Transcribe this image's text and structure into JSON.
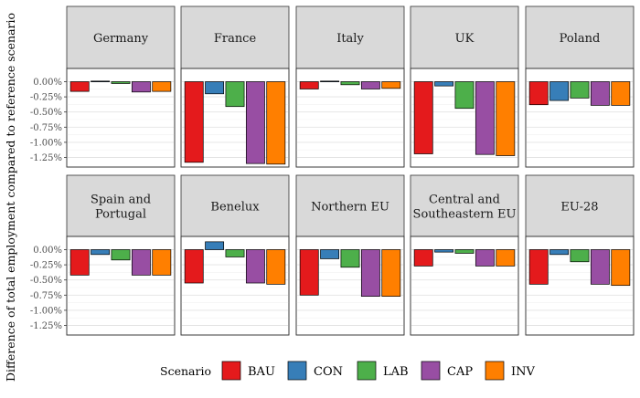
{
  "chart_data": {
    "type": "bar",
    "ylabel": "Difference of total employment compared to reference scenario",
    "yticks": [
      "0.00%",
      "-0.25%",
      "-0.50%",
      "-0.75%",
      "-1.00%",
      "-1.25%"
    ],
    "ytick_values": [
      0,
      -0.25,
      -0.5,
      -0.75,
      -1.0,
      -1.25
    ],
    "ylim": [
      -1.4,
      0.15
    ],
    "series_names": [
      "BAU",
      "CON",
      "LAB",
      "CAP",
      "INV"
    ],
    "colors": [
      "#e41a1c",
      "#377eb8",
      "#4daf4a",
      "#984ea3",
      "#ff7f00"
    ],
    "legend_title": "Scenario",
    "legend_position": "bottom",
    "grid": true,
    "facets": [
      {
        "title": "Germany",
        "values": [
          -0.16,
          0.01,
          -0.03,
          -0.17,
          -0.16
        ]
      },
      {
        "title": "France",
        "values": [
          -1.33,
          -0.2,
          -0.41,
          -1.35,
          -1.36
        ]
      },
      {
        "title": "Italy",
        "values": [
          -0.12,
          0.01,
          -0.05,
          -0.12,
          -0.11
        ]
      },
      {
        "title": "UK",
        "values": [
          -1.19,
          -0.07,
          -0.44,
          -1.2,
          -1.22
        ]
      },
      {
        "title": "Poland",
        "values": [
          -0.38,
          -0.31,
          -0.27,
          -0.39,
          -0.39
        ]
      },
      {
        "title": "Spain and Portugal",
        "values": [
          -0.42,
          -0.08,
          -0.17,
          -0.42,
          -0.42
        ]
      },
      {
        "title": "Benelux",
        "values": [
          -0.55,
          0.13,
          -0.12,
          -0.55,
          -0.57
        ]
      },
      {
        "title": "Northern EU",
        "values": [
          -0.75,
          -0.15,
          -0.29,
          -0.77,
          -0.77
        ]
      },
      {
        "title": "Central and Southeastern EU",
        "values": [
          -0.27,
          -0.04,
          -0.06,
          -0.27,
          -0.27
        ]
      },
      {
        "title": "EU-28",
        "values": [
          -0.57,
          -0.08,
          -0.2,
          -0.57,
          -0.59
        ]
      }
    ]
  }
}
